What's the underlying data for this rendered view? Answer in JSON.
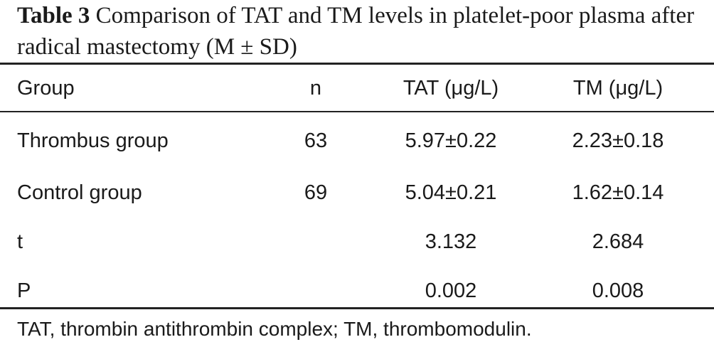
{
  "caption": {
    "label": "Table 3",
    "title": "Comparison of TAT and TM levels in platelet-poor plasma after radical mastectomy (M ± SD)"
  },
  "table": {
    "headers": [
      "Group",
      "n",
      "TAT (μg/L)",
      "TM (μg/L)"
    ],
    "rows": [
      [
        "Thrombus group",
        "63",
        "5.97±0.22",
        "2.23±0.18"
      ],
      [
        "Control group",
        "69",
        "5.04±0.21",
        "1.62±0.14"
      ],
      [
        "t",
        "",
        "3.132",
        "2.684"
      ],
      [
        "P",
        "",
        "0.002",
        "0.008"
      ]
    ]
  },
  "footnote": "TAT, thrombin antithrombin complex; TM, thrombomodulin."
}
